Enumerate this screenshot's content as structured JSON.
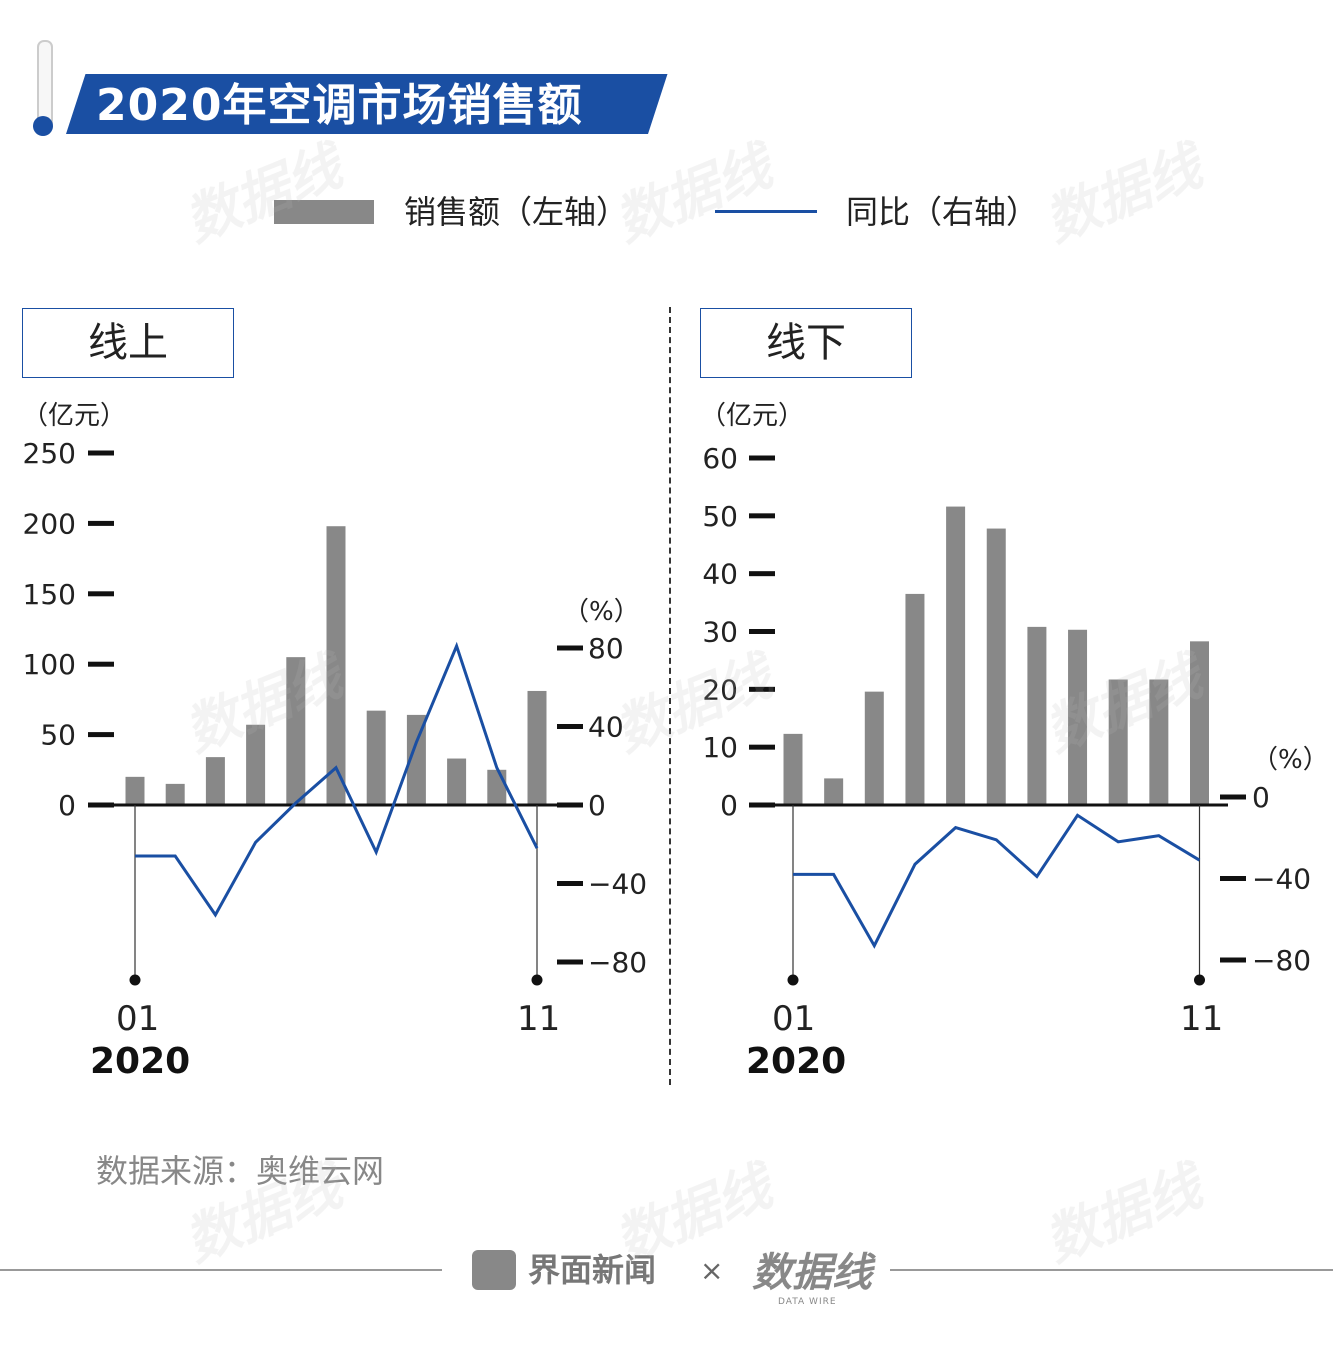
{
  "title": "2020年空调市场销售额",
  "legend": {
    "bar_label": "销售额（左轴）",
    "line_label": "同比（右轴）"
  },
  "colors": {
    "bar": "#888888",
    "line": "#1a4fa3",
    "accent": "#1a4fa3"
  },
  "source": "数据来源：奥维云网",
  "footer": {
    "brand1": "界面新闻",
    "separator": "×",
    "brand2": "数据线",
    "brand2_sub": "DATA WIRE"
  },
  "watermark": "数据线",
  "chart_data": [
    {
      "type": "bar",
      "title": "线上",
      "y_unit": "（亿元）",
      "y2_unit": "（%）",
      "ylim": [
        0,
        250
      ],
      "yticks": [
        0,
        50,
        100,
        150,
        200,
        250
      ],
      "y2lim": [
        -80,
        80
      ],
      "y2ticks": [
        80,
        40,
        0,
        -40,
        -80
      ],
      "x_tick_labels": [
        "01",
        "11"
      ],
      "year_label": "2020",
      "categories": [
        "01",
        "02",
        "03",
        "04",
        "05",
        "06",
        "07",
        "08",
        "09",
        "10",
        "11"
      ],
      "series": [
        {
          "name": "销售额（左轴）",
          "type": "bar",
          "values": [
            20,
            15,
            34,
            57,
            105,
            198,
            67,
            64,
            33,
            25,
            81
          ]
        },
        {
          "name": "同比（右轴）",
          "type": "line",
          "values": [
            -26,
            -26,
            -56,
            -19,
            1,
            19,
            -24,
            32,
            81,
            19,
            -22
          ]
        }
      ]
    },
    {
      "type": "bar",
      "title": "线下",
      "y_unit": "（亿元）",
      "y2_unit": "（%）",
      "ylim": [
        0,
        60
      ],
      "yticks": [
        0,
        10,
        20,
        30,
        40,
        50,
        60
      ],
      "y2lim": [
        -80,
        0
      ],
      "y2ticks": [
        0,
        -40,
        -80
      ],
      "x_tick_labels": [
        "01",
        "11"
      ],
      "year_label": "2020",
      "categories": [
        "01",
        "02",
        "03",
        "04",
        "05",
        "06",
        "07",
        "08",
        "09",
        "10",
        "11"
      ],
      "series": [
        {
          "name": "销售额（左轴）",
          "type": "bar",
          "values": [
            12.3,
            4.6,
            19.6,
            36.5,
            51.6,
            47.8,
            30.8,
            30.3,
            21.7,
            21.7,
            28.3
          ]
        },
        {
          "name": "同比（右轴）",
          "type": "line",
          "values": [
            -38,
            -38,
            -73,
            -33,
            -15,
            -21,
            -39,
            -9,
            -22,
            -19,
            -31
          ]
        }
      ]
    }
  ]
}
